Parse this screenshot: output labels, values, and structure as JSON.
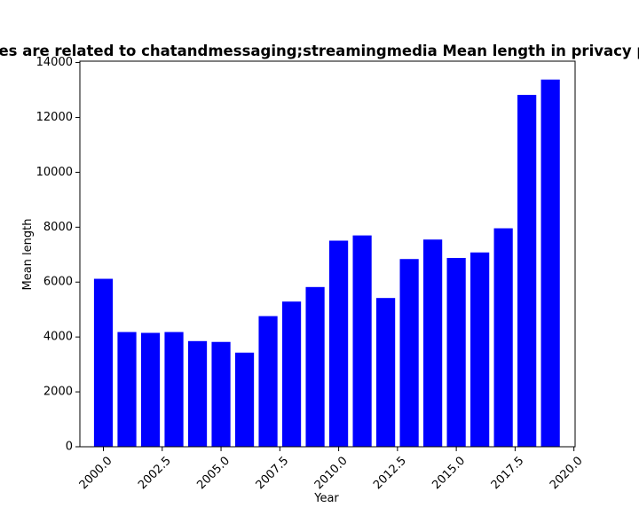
{
  "chart_data": {
    "type": "bar",
    "title": "Queries are related to chatandmessaging;streamingmedia Mean length in privacy policies",
    "xlabel": "Year",
    "ylabel": "Mean length",
    "x": [
      2000,
      2001,
      2002,
      2003,
      2004,
      2005,
      2006,
      2007,
      2008,
      2009,
      2010,
      2011,
      2012,
      2013,
      2014,
      2015,
      2016,
      2017,
      2018,
      2019
    ],
    "values": [
      6120,
      4180,
      4150,
      4180,
      3850,
      3820,
      3430,
      4760,
      5290,
      5820,
      7510,
      7700,
      5420,
      6840,
      7550,
      6880,
      7080,
      7960,
      12820,
      13380
    ],
    "xlim": [
      1999.0,
      2020.05
    ],
    "ylim": [
      0,
      14050
    ],
    "xticks": [
      2000.0,
      2002.5,
      2005.0,
      2007.5,
      2010.0,
      2012.5,
      2015.0,
      2017.5,
      2020.0
    ],
    "xtick_labels": [
      "2000.0",
      "2002.5",
      "2005.0",
      "2007.5",
      "2010.0",
      "2012.5",
      "2015.0",
      "2017.5",
      "2020.0"
    ],
    "yticks": [
      0,
      2000,
      4000,
      6000,
      8000,
      10000,
      12000,
      14000
    ],
    "ytick_labels": [
      "0",
      "2000",
      "4000",
      "6000",
      "8000",
      "10000",
      "12000",
      "14000"
    ],
    "bar_width": 0.8,
    "bar_color": "#0000ff",
    "grid": false,
    "legend": "none"
  }
}
